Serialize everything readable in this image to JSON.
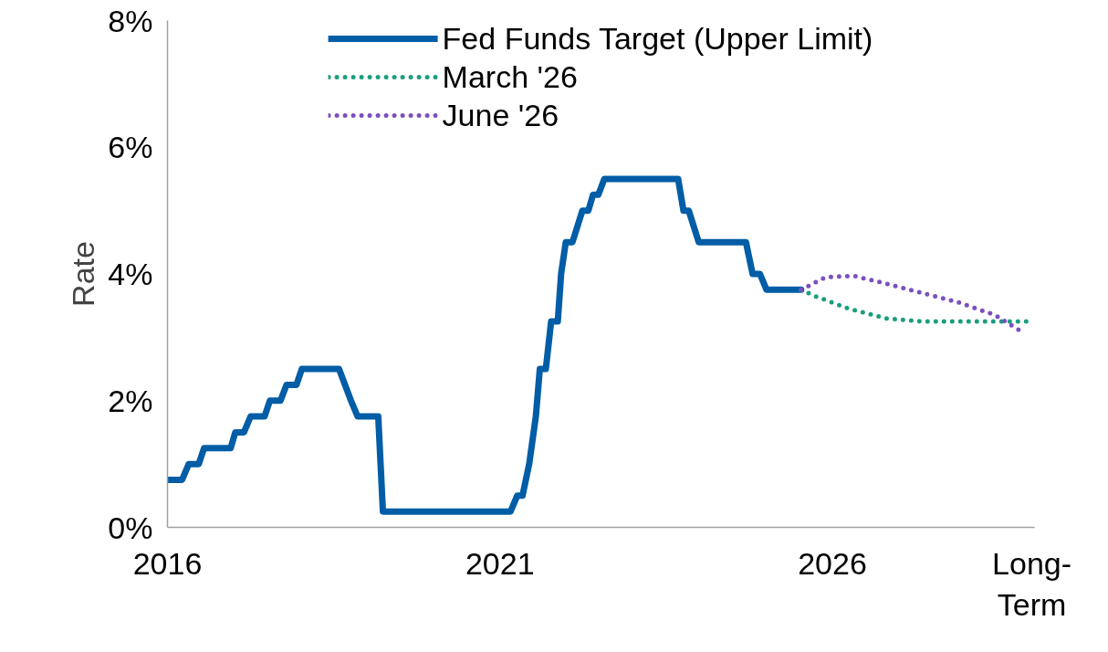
{
  "chart_data": {
    "type": "line",
    "ylabel": "Rate",
    "legend": "top",
    "grid": false,
    "marker": "none",
    "xlim": [
      2016,
      2029.04
    ],
    "xticks": [
      2016,
      2021,
      2026,
      {
        "value": 2029,
        "label": "Long-\nTerm"
      }
    ],
    "ylim": [
      0,
      8
    ],
    "yticks": [
      {
        "value": 0,
        "label": "0%"
      },
      {
        "value": 2,
        "label": "2%"
      },
      {
        "value": 4,
        "label": "4%"
      },
      {
        "value": 6,
        "label": "6%"
      },
      {
        "value": 8,
        "label": "8%"
      }
    ],
    "series": [
      {
        "name": "Fed Funds Target (Upper Limit)",
        "color": "#005da6",
        "line_style": "solid",
        "x": [
          2016.0,
          2016.22,
          2016.32,
          2016.47,
          2016.55,
          2016.95,
          2017.02,
          2017.15,
          2017.25,
          2017.46,
          2017.54,
          2017.7,
          2017.79,
          2017.94,
          2018.02,
          2018.58,
          2018.76,
          2018.86,
          2019.17,
          2019.24,
          2021.16,
          2021.26,
          2021.34,
          2021.44,
          2021.54,
          2021.6,
          2021.69,
          2021.77,
          2021.87,
          2021.92,
          2021.99,
          2022.09,
          2022.24,
          2022.33,
          2022.4,
          2022.48,
          2022.57,
          2023.68,
          2023.76,
          2023.84,
          2023.99,
          2024.7,
          2024.8,
          2024.91,
          2025.01,
          2025.53
        ],
        "values": [
          0.75,
          0.75,
          1.0,
          1.0,
          1.25,
          1.25,
          1.5,
          1.5,
          1.75,
          1.75,
          2.0,
          2.0,
          2.25,
          2.25,
          2.5,
          2.5,
          2.0,
          1.75,
          1.75,
          0.25,
          0.25,
          0.5,
          0.5,
          1.0,
          1.75,
          2.5,
          2.5,
          3.25,
          3.25,
          4.0,
          4.5,
          4.5,
          5.0,
          5.0,
          5.25,
          5.25,
          5.5,
          5.5,
          5.0,
          5.0,
          4.5,
          4.5,
          4.0,
          4.0,
          3.75,
          3.75
        ]
      },
      {
        "name": "March '26",
        "color": "#1a9e7e",
        "line_style": "dotted",
        "x": [
          2025.53,
          2025.74,
          2026.25,
          2026.8,
          2027.35,
          2027.9,
          2028.45,
          2028.97
        ],
        "values": [
          3.75,
          3.65,
          3.45,
          3.3,
          3.25,
          3.25,
          3.25,
          3.25
        ]
      },
      {
        "name": "June '26",
        "color": "#7b4fbf",
        "line_style": "dotted",
        "x": [
          2025.53,
          2025.9,
          2026.32,
          2026.8,
          2027.35,
          2027.9,
          2028.45,
          2028.83
        ],
        "values": [
          3.75,
          3.95,
          3.97,
          3.85,
          3.7,
          3.55,
          3.35,
          3.1
        ]
      }
    ]
  }
}
